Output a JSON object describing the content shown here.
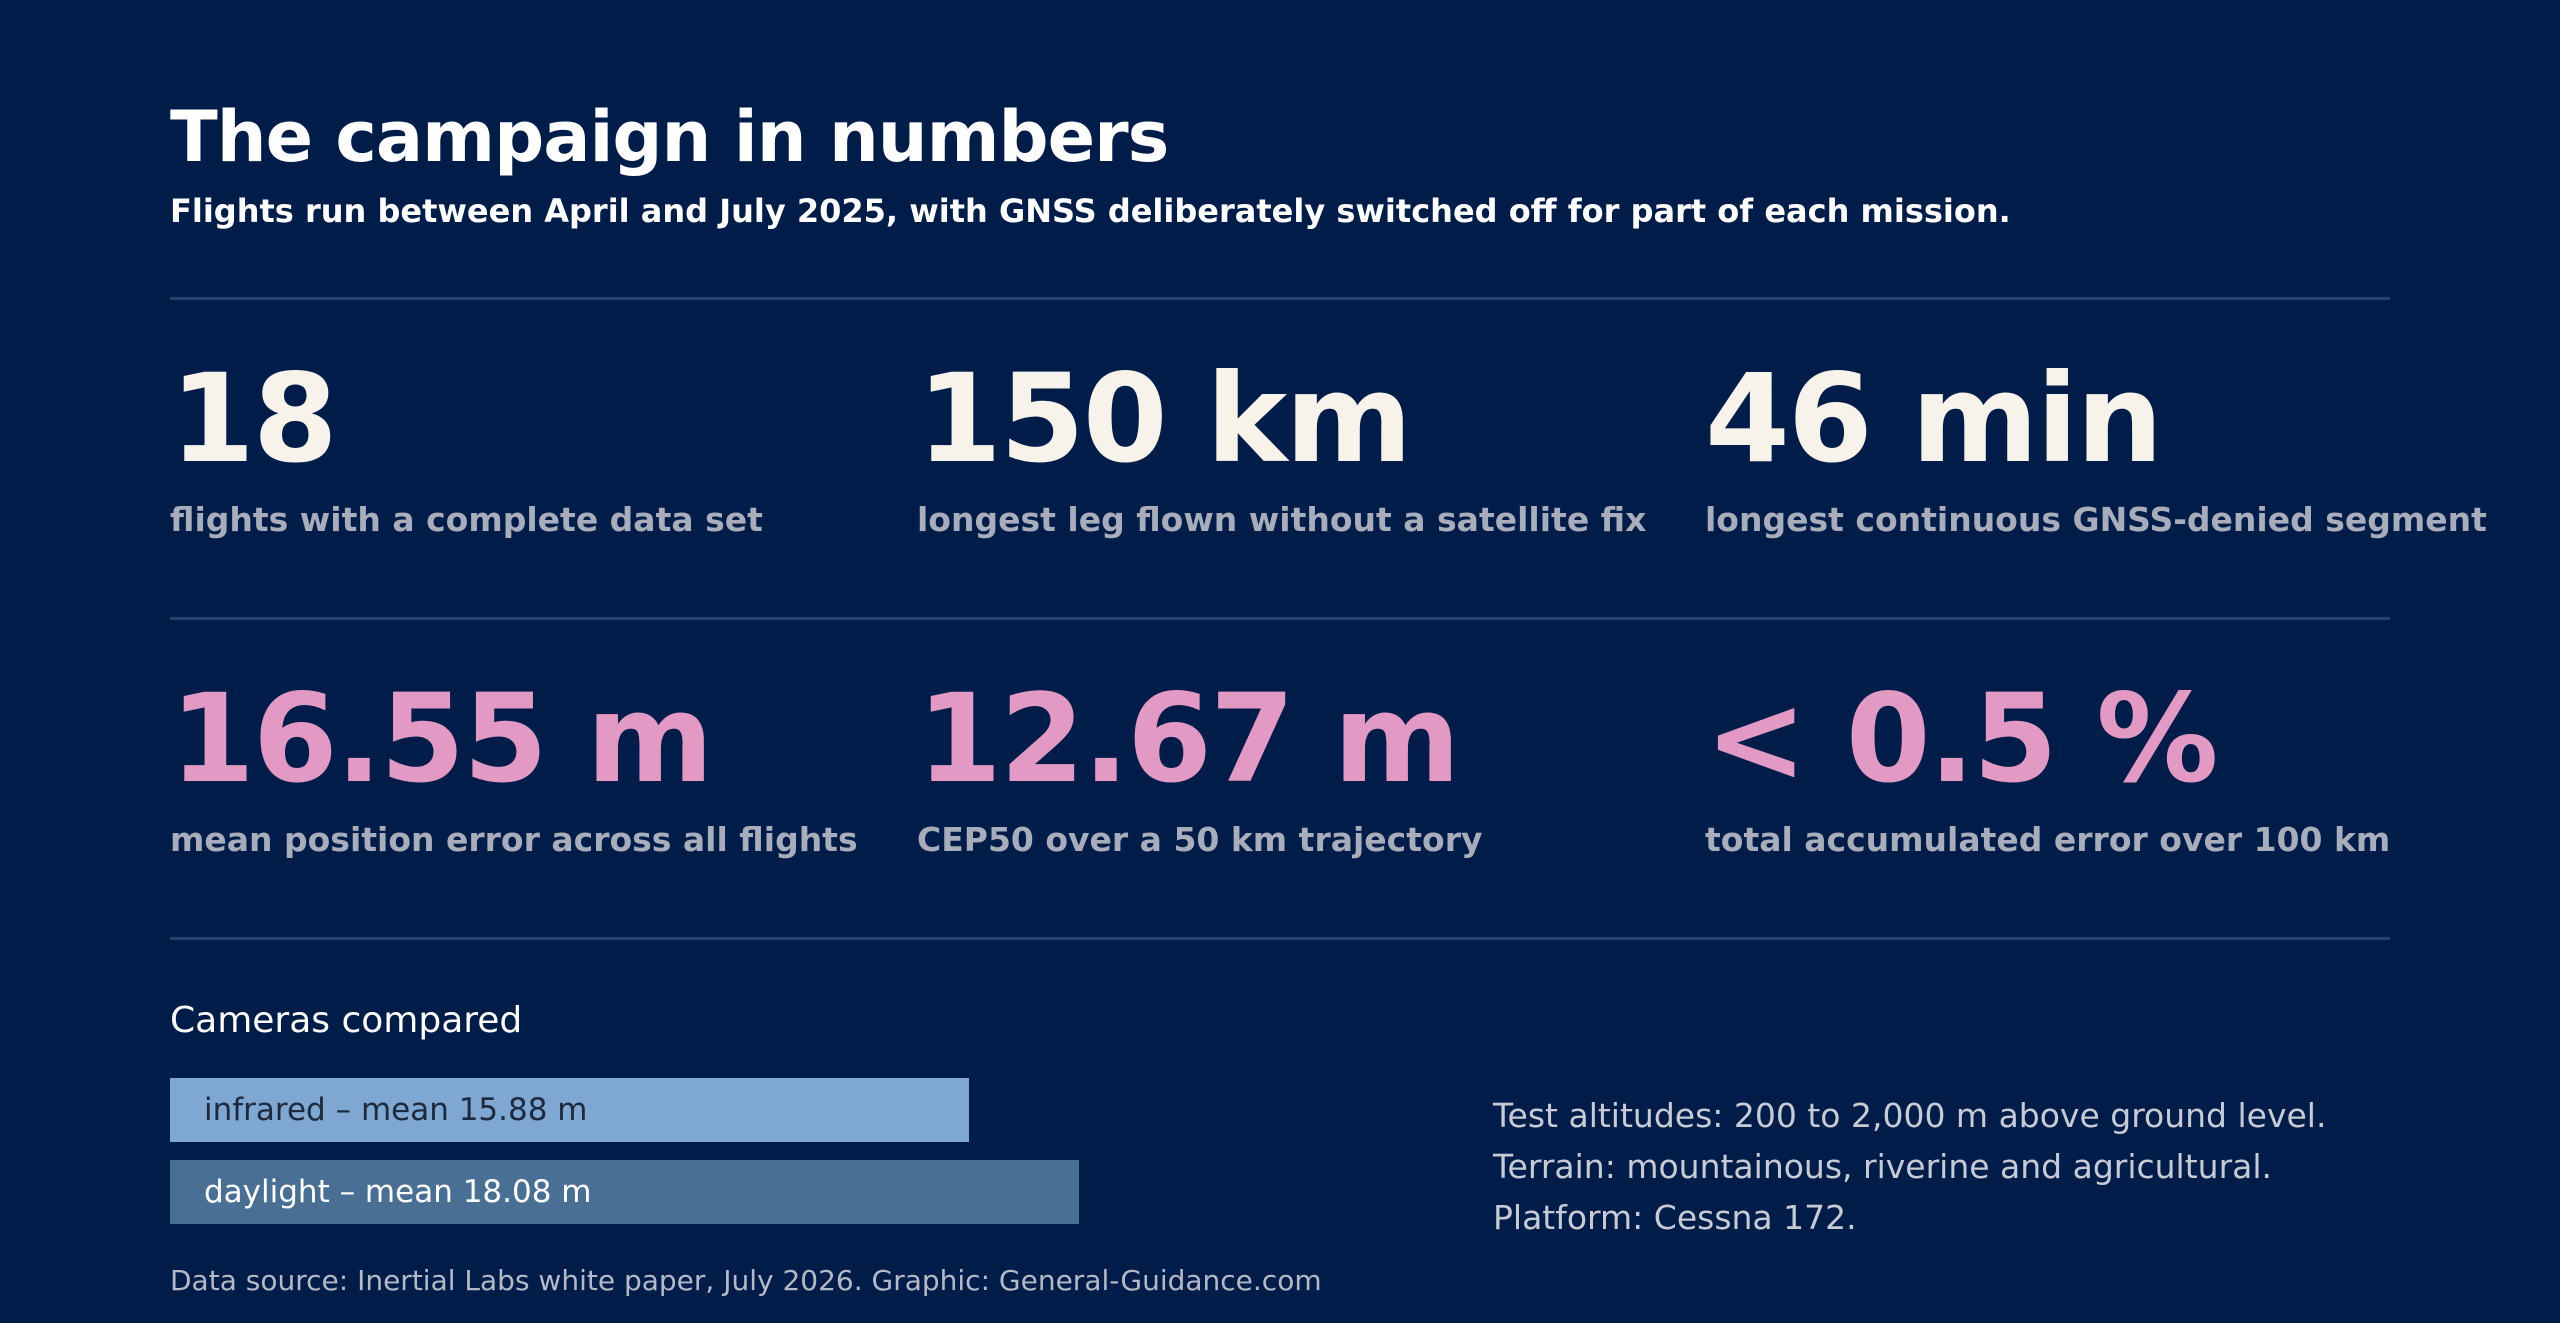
{
  "header": {
    "title": "The campaign in numbers",
    "subtitle": "Flights run between April and July 2025, with GNSS deliberately switched off for part of each mission."
  },
  "stats_top": [
    {
      "value": "18",
      "label": "flights with a complete data set"
    },
    {
      "value": "150 km",
      "label": "longest leg flown without a satellite fix"
    },
    {
      "value": "46 min",
      "label": "longest continuous GNSS-denied segment"
    }
  ],
  "stats_bottom": [
    {
      "value": "16.55 m",
      "label": "mean position error across all flights"
    },
    {
      "value": "12.67 m",
      "label": "CEP50 over a 50 km trajectory"
    },
    {
      "value": "< 0.5 %",
      "label": "total accumulated error over 100 km"
    }
  ],
  "cameras": {
    "title": "Cameras compared",
    "bars": [
      {
        "label": "infrared – mean 15.88 m",
        "value": 15.88
      },
      {
        "label": "daylight – mean 18.08 m",
        "value": 18.08
      }
    ]
  },
  "facts": [
    "Test altitudes: 200 to 2,000 m above ground level.",
    "Terrain: mountainous, riverine and agricultural.",
    "Platform: Cessna 172."
  ],
  "footer": {
    "source": "Data source: Inertial Labs white paper, July 2026. Graphic: General-Guidance.com"
  },
  "colors": {
    "background": "#001d4a",
    "stat_white": "#f7f3ea",
    "stat_pink": "#e29ac4",
    "bar_infrared": "#7ea7d1",
    "bar_daylight": "#4a6f94"
  }
}
